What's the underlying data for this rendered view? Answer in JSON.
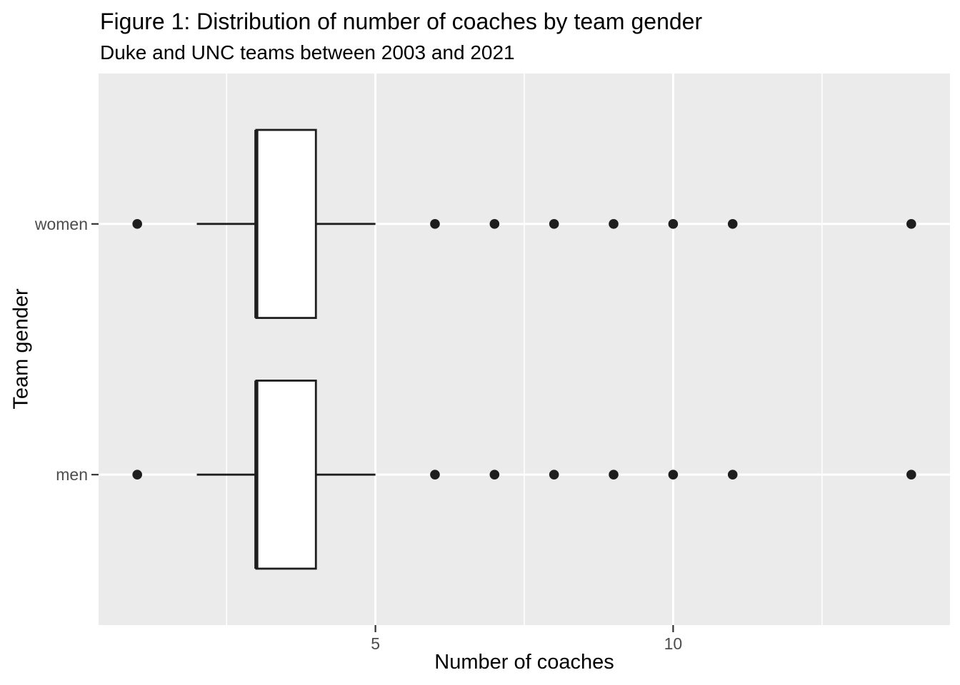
{
  "figure": {
    "title": "Figure 1: Distribution of number of coaches by team gender",
    "subtitle": "Duke and UNC teams between 2003 and 2021"
  },
  "chart_data": {
    "type": "boxplot",
    "orientation": "horizontal",
    "title": "Figure 1: Distribution of number of coaches by team gender",
    "subtitle": "Duke and UNC teams between 2003 and 2021",
    "xlabel": "Number of coaches",
    "ylabel": "Team gender",
    "xlim": [
      0.35,
      14.65
    ],
    "ylim": [
      0.4,
      2.6
    ],
    "x_ticks_major": [
      5,
      10
    ],
    "x_ticks_minor": [
      2.5,
      7.5,
      12.5
    ],
    "grid": true,
    "legend": "none",
    "box_width": 0.75,
    "categories": [
      "men",
      "women"
    ],
    "series": [
      {
        "name": "women",
        "position": 2,
        "q1": 3,
        "median": 3,
        "q3": 4,
        "whisker_low": 2,
        "whisker_high": 5,
        "outliers": [
          1,
          6,
          7,
          8,
          9,
          10,
          11,
          14
        ]
      },
      {
        "name": "men",
        "position": 1,
        "q1": 3,
        "median": 3,
        "q3": 4,
        "whisker_low": 2,
        "whisker_high": 5,
        "outliers": [
          1,
          6,
          7,
          8,
          9,
          10,
          11,
          14
        ]
      }
    ]
  },
  "colors": {
    "page_bg": "#FFFFFF",
    "panel_bg": "#EBEBEB",
    "grid": "#FFFFFF",
    "box_stroke": "#1E1E1E",
    "box_fill": "#FFFFFF",
    "point": "#1E1E1E",
    "tick_mark": "#333333",
    "tick_label": "#4D4D4D",
    "axis_title": "#000000"
  }
}
